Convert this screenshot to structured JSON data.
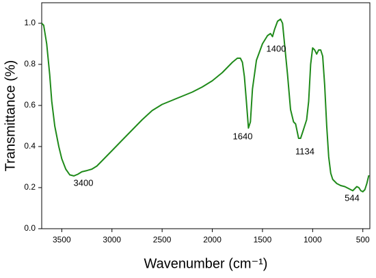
{
  "chart_data": {
    "type": "line",
    "xlabel": "Wavenumber (cm⁻¹)",
    "ylabel": "Transmittance (%)",
    "xlim": [
      3700,
      430
    ],
    "xticks": [
      3500,
      3000,
      2500,
      2000,
      1500,
      1000,
      500
    ],
    "ylim": [
      0,
      1.1
    ],
    "yticks": [
      {
        "value": 0,
        "label": "0.0"
      },
      {
        "value": 0.2,
        "label": "0.2"
      },
      {
        "value": 0.4,
        "label": "0.4"
      },
      {
        "value": 0.6,
        "label": "0.6"
      },
      {
        "value": 0.8,
        "label": "0.8"
      },
      {
        "value": 1,
        "label": "1.0"
      }
    ],
    "annotations": [
      "3400",
      "1640",
      "1400",
      "1134",
      "544"
    ],
    "series": [
      {
        "color": "#1f8a1a",
        "x": [
          3700,
          3680,
          3650,
          3620,
          3600,
          3570,
          3530,
          3500,
          3460,
          3420,
          3380,
          3340,
          3300,
          3250,
          3200,
          3150,
          3100,
          3000,
          2900,
          2800,
          2700,
          2600,
          2500,
          2400,
          2300,
          2200,
          2100,
          2000,
          1900,
          1800,
          1750,
          1720,
          1700,
          1680,
          1660,
          1640,
          1620,
          1600,
          1560,
          1500,
          1450,
          1420,
          1400,
          1380,
          1350,
          1320,
          1300,
          1280,
          1250,
          1220,
          1190,
          1170,
          1140,
          1120,
          1100,
          1080,
          1060,
          1040,
          1020,
          1000,
          980,
          960,
          940,
          920,
          900,
          880,
          860,
          840,
          820,
          800,
          760,
          720,
          680,
          640,
          600,
          580,
          560,
          540,
          520,
          500,
          480,
          460,
          440
        ],
        "values": [
          1.0,
          0.99,
          0.9,
          0.75,
          0.62,
          0.5,
          0.4,
          0.34,
          0.29,
          0.262,
          0.257,
          0.265,
          0.277,
          0.283,
          0.29,
          0.305,
          0.33,
          0.38,
          0.43,
          0.48,
          0.53,
          0.575,
          0.605,
          0.625,
          0.645,
          0.665,
          0.69,
          0.72,
          0.76,
          0.81,
          0.83,
          0.83,
          0.81,
          0.74,
          0.62,
          0.49,
          0.52,
          0.68,
          0.82,
          0.9,
          0.94,
          0.95,
          0.935,
          0.97,
          1.01,
          1.02,
          1.0,
          0.9,
          0.75,
          0.58,
          0.52,
          0.51,
          0.44,
          0.44,
          0.47,
          0.5,
          0.53,
          0.62,
          0.8,
          0.88,
          0.87,
          0.85,
          0.87,
          0.87,
          0.84,
          0.7,
          0.5,
          0.35,
          0.27,
          0.24,
          0.22,
          0.21,
          0.205,
          0.195,
          0.185,
          0.195,
          0.205,
          0.2,
          0.185,
          0.18,
          0.19,
          0.22,
          0.26
        ]
      }
    ]
  }
}
